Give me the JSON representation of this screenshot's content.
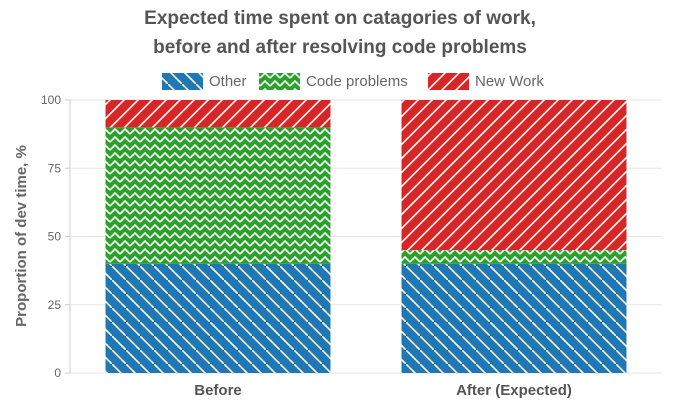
{
  "chart_data": {
    "type": "bar",
    "stacked": true,
    "title": [
      "Expected time spent on catagories of work,",
      "before and after resolving code problems"
    ],
    "ylabel": "Proportion of dev time, %",
    "xlabel": "",
    "categories": [
      "Before",
      "After (Expected)"
    ],
    "ylim": [
      0,
      100
    ],
    "yticks": [
      0,
      25,
      50,
      75,
      100
    ],
    "grid": true,
    "legend_position": "top",
    "series": [
      {
        "name": "Other",
        "values": [
          40,
          40
        ],
        "color": "#1f77b4",
        "pattern": "diagonal-lines-down"
      },
      {
        "name": "Code problems",
        "values": [
          50,
          5
        ],
        "color": "#2ca02c",
        "pattern": "zigzag"
      },
      {
        "name": "New Work",
        "values": [
          10,
          55
        ],
        "color": "#d62728",
        "pattern": "diagonal-lines-up"
      }
    ]
  }
}
